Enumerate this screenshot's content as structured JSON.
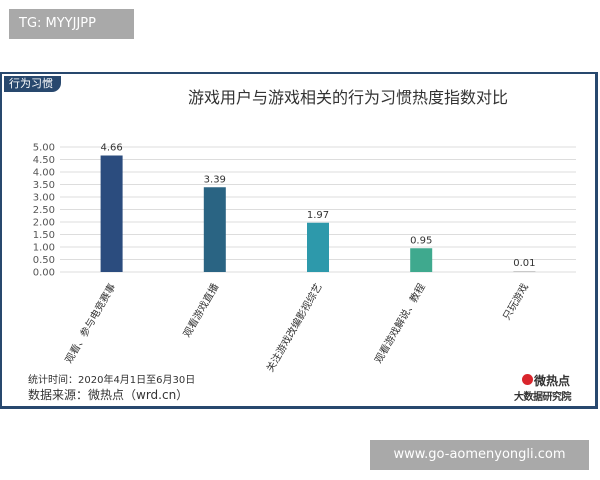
{
  "top_badge": {
    "text": "TG: MYYJJPP"
  },
  "card": {
    "tag": "行为习惯",
    "period_note": "统计时间：2020年4月1日至6月30日",
    "source_note": "数据来源：微热点（wrd.cn）"
  },
  "logo": {
    "name": "微热点",
    "subtitle": "大数据研究院"
  },
  "bottom_badge": {
    "text": "www.go-aomenyongli.com"
  },
  "colors": {
    "frame": "#28486e",
    "grid": "#dddddd",
    "axis_text": "#555555"
  },
  "chart_data": {
    "type": "bar",
    "title": "游戏用户与游戏相关的行为习惯热度指数对比",
    "categories": [
      "观看、参与电竞赛事",
      "观看游戏直播",
      "关注游戏改编影视综艺",
      "观看游戏解说、教程",
      "只玩游戏"
    ],
    "values": [
      4.66,
      3.39,
      1.97,
      0.95,
      0.01
    ],
    "value_labels": [
      "4.66",
      "3.39",
      "1.97",
      "0.95",
      "0.01"
    ],
    "bar_colors": [
      "#2b4c7e",
      "#2a6483",
      "#2d99ab",
      "#3fa98e",
      "#c9c9c9"
    ],
    "yticks": [
      "0.00",
      "0.50",
      "1.00",
      "1.50",
      "2.00",
      "2.50",
      "3.00",
      "3.50",
      "4.00",
      "4.50",
      "5.00"
    ],
    "ylim": [
      0,
      5
    ],
    "grid": true,
    "xlabel": "",
    "ylabel": ""
  }
}
